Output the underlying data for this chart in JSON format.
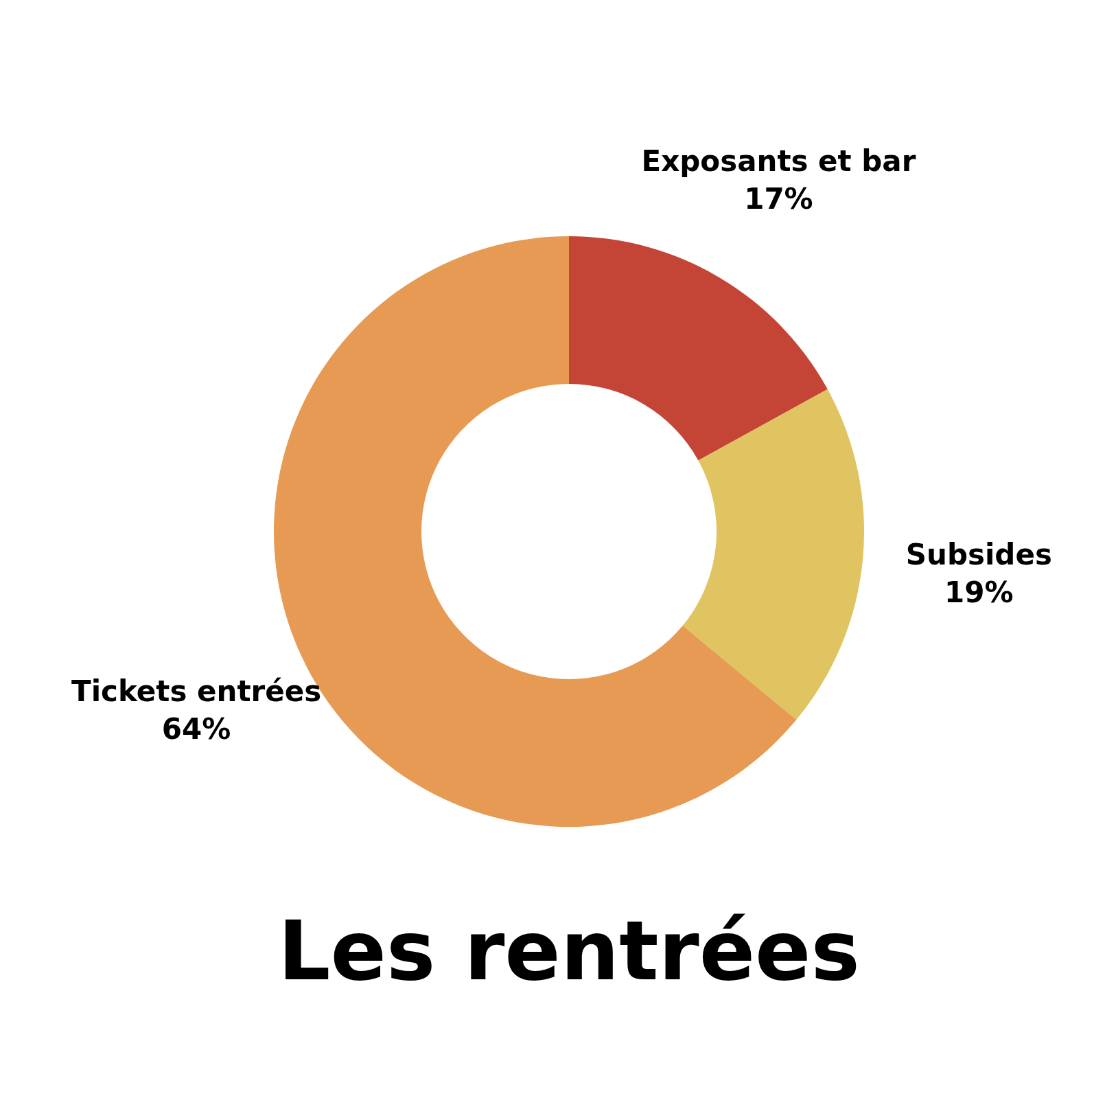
{
  "chart_data": {
    "type": "donut",
    "title": "Les rentrées",
    "categories": [
      "Exposants et bar",
      "Subsides",
      "Tickets entrées"
    ],
    "values": [
      17,
      19,
      64
    ],
    "colors": [
      "#c44536",
      "#e0c462",
      "#e69a53"
    ],
    "value_labels": [
      "17%",
      "19%",
      "64%"
    ],
    "legend": false
  }
}
